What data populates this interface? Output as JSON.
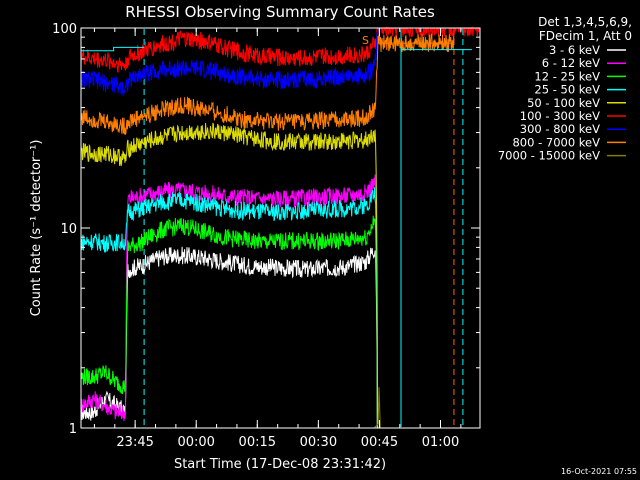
{
  "chart_data": {
    "type": "line",
    "title": "RHESSI Observing Summary Count Rates",
    "xlabel": "Start Time (17-Dec-08 23:31:42)",
    "ylabel": "Count Rate (s⁻¹ detector⁻¹)",
    "y_scale": "log",
    "ylim": [
      1,
      100
    ],
    "y_ticks": [
      "1",
      "10",
      "100"
    ],
    "x_range_minutes": [
      0,
      98
    ],
    "x_ticks": [
      {
        "label": "23:45",
        "minute": 13.3
      },
      {
        "label": "00:00",
        "minute": 28.3
      },
      {
        "label": "00:15",
        "minute": 43.3
      },
      {
        "label": "00:30",
        "minute": 58.3
      },
      {
        "label": "00:45",
        "minute": 73.3
      },
      {
        "label": "01:00",
        "minute": 88.3
      }
    ],
    "legend_header": [
      "Det 1,3,4,5,6,9,",
      "FDecim 1, Att 0"
    ],
    "legend_position": "right, outside plot",
    "annotation": "S",
    "vlines": [
      {
        "minute": 15.5,
        "color": "#00ffff",
        "style": "dashed"
      },
      {
        "minute": 78.6,
        "color": "#00ffff",
        "style": "solid"
      },
      {
        "minute": 91.6,
        "color": "#ff6600",
        "style": "dashed"
      },
      {
        "minute": 93.8,
        "color": "#00ffff",
        "style": "dashed"
      }
    ],
    "series": [
      {
        "name": "3 - 6 keV",
        "color": "#ffffff",
        "x": [
          0,
          3,
          6,
          8.5,
          11,
          11.5,
          15,
          20,
          25,
          30,
          35,
          40,
          45,
          50,
          55,
          60,
          65,
          70,
          72.3,
          72.8
        ],
        "y": [
          1.2,
          1.2,
          1.4,
          1.3,
          1.2,
          6.2,
          6.5,
          7.2,
          7.3,
          7.1,
          6.8,
          6.5,
          6.4,
          6.3,
          6.2,
          6.3,
          6.4,
          6.8,
          8.0,
          1
        ]
      },
      {
        "name": "6 - 12 keV",
        "color": "#ff00ff",
        "x": [
          0,
          3,
          6,
          8.5,
          11,
          11.5,
          15,
          20,
          25,
          30,
          35,
          40,
          45,
          50,
          55,
          60,
          65,
          70,
          72.3,
          72.8
        ],
        "y": [
          1.3,
          1.4,
          1.3,
          1.2,
          1.2,
          14.0,
          14.5,
          15.3,
          15.5,
          15.0,
          14.5,
          14.2,
          14.0,
          14.0,
          14.1,
          14.3,
          14.5,
          15.0,
          17.0,
          1
        ]
      },
      {
        "name": "12 - 25 keV",
        "color": "#00ff00",
        "x": [
          0,
          3,
          6,
          8.5,
          11,
          11.5,
          15,
          20,
          25,
          30,
          35,
          40,
          45,
          50,
          55,
          60,
          65,
          70,
          72.3,
          72.8
        ],
        "y": [
          1.8,
          1.8,
          1.9,
          1.7,
          1.6,
          8.0,
          8.5,
          9.8,
          10.3,
          9.6,
          9.0,
          8.7,
          8.5,
          8.6,
          8.6,
          8.6,
          8.7,
          9.0,
          11.0,
          1
        ]
      },
      {
        "name": "25 - 50 keV",
        "color": "#00ffff",
        "x": [
          0,
          3,
          6,
          8.5,
          11,
          11.5,
          15,
          20,
          25,
          30,
          35,
          40,
          45,
          50,
          55,
          60,
          65,
          70,
          72.3,
          72.8
        ],
        "y": [
          8.5,
          8.6,
          8.4,
          8.5,
          8.5,
          12.0,
          12.5,
          13.5,
          13.8,
          13.2,
          12.5,
          12.2,
          12.0,
          12.0,
          12.2,
          12.3,
          12.5,
          13.0,
          15.0,
          1
        ]
      },
      {
        "name": "50 - 100 keV",
        "color": "#dddd00",
        "x": [
          0,
          3,
          6,
          8.5,
          11,
          11.5,
          15,
          20,
          25,
          30,
          35,
          40,
          45,
          50,
          55,
          60,
          65,
          70,
          72.3,
          72.8
        ],
        "y": [
          24,
          23.5,
          23.5,
          23,
          22,
          25,
          26.5,
          28.5,
          30,
          30.5,
          30,
          28.5,
          27.5,
          27,
          27,
          27,
          27.3,
          27.5,
          30,
          1
        ]
      },
      {
        "name": "100 - 300 keV",
        "color": "#ff0000",
        "x": [
          0,
          3,
          6,
          8.5,
          11,
          11.5,
          15,
          20,
          25,
          30,
          35,
          40,
          45,
          50,
          55,
          60,
          65,
          70,
          72.3,
          73,
          73.8,
          98
        ],
        "y": [
          72,
          70,
          69,
          67,
          65,
          71,
          76,
          83,
          88,
          86,
          80,
          75,
          72,
          71,
          71,
          72,
          73,
          74,
          84,
          100,
          100,
          100
        ]
      },
      {
        "name": "300 - 800 keV",
        "color": "#0000ff",
        "x": [
          0,
          3,
          6,
          8.5,
          11,
          11.5,
          15,
          20,
          25,
          30,
          35,
          40,
          45,
          50,
          55,
          60,
          65,
          70,
          72.3,
          73
        ],
        "y": [
          56,
          55,
          53,
          52,
          50,
          54,
          59,
          62,
          63,
          62,
          59,
          57,
          55,
          55,
          55,
          56,
          57,
          58,
          65,
          100
        ]
      },
      {
        "name": "800 - 7000 keV",
        "color": "#ff7f00",
        "x": [
          0,
          3,
          6,
          8.5,
          11,
          11.5,
          15,
          20,
          25,
          30,
          35,
          40,
          45,
          50,
          55,
          60,
          65,
          70,
          72.3,
          73,
          73.5,
          91.6
        ],
        "y": [
          36,
          35,
          34,
          33,
          32,
          34,
          36,
          39,
          41,
          39,
          37,
          35,
          34,
          34,
          34,
          34.5,
          35,
          35.5,
          40,
          86,
          84,
          84
        ]
      },
      {
        "name": "7000 - 15000 keV",
        "color": "#7f7f00",
        "x": [
          0,
          72,
          73,
          73.2,
          73.5
        ],
        "y": [
          1,
          1,
          1.05,
          1.6,
          1
        ]
      }
    ],
    "extra_lines": [
      {
        "color": "#00ffff",
        "x": [
          0,
          8,
          8,
          15.5
        ],
        "y": [
          77,
          77,
          80,
          80
        ]
      },
      {
        "color": "#00ffff",
        "x": [
          78.6,
          93.8,
          93.8,
          96
        ],
        "y": [
          78,
          78,
          78,
          78
        ]
      },
      {
        "color": "#ff7f00",
        "x": [
          73,
          91.6
        ],
        "y": [
          84,
          84
        ]
      }
    ]
  },
  "footer": {
    "timestamp": "16-Oct-2021 07:55"
  }
}
